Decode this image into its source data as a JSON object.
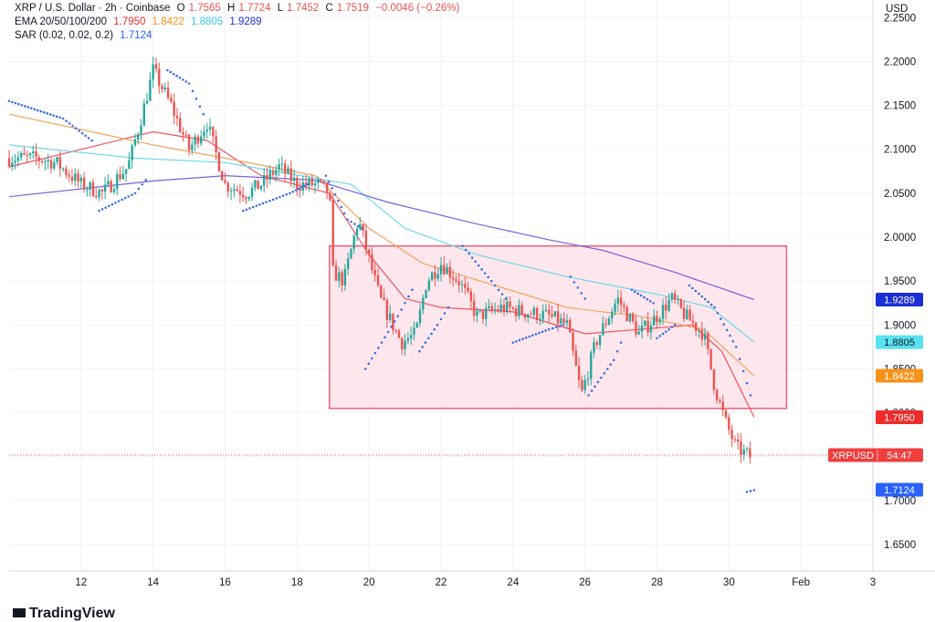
{
  "header": {
    "symbol": "XRP / U.S. Dollar · 2h · Coinbase",
    "ohlc": [
      {
        "k": "O",
        "v": "1.7565"
      },
      {
        "k": "H",
        "v": "1.7724"
      },
      {
        "k": "L",
        "v": "1.7452"
      },
      {
        "k": "C",
        "v": "1.7519"
      }
    ],
    "change": "−0.0046 (−0.26%)",
    "ema_label": "EMA 20/50/100/200",
    "ema_values": [
      "1.7950",
      "1.8422",
      "1.8805",
      "1.9289"
    ],
    "sar_label": "SAR (0.02, 0.02, 0.2)",
    "sar_value": "1.7124"
  },
  "currency": "USD",
  "logo_text": "TradingView",
  "colors": {
    "up": "#26a69a",
    "down": "#ef5350",
    "ema20": "#f0525f",
    "ema50": "#f5a35b",
    "ema100": "#6fd8e6",
    "ema200": "#7b61d9",
    "sar": "#3d6fe0",
    "box_fill": "#fde3ea",
    "box_stroke": "#e8607a",
    "price_line": "#ef5350"
  },
  "chart_data": {
    "type": "candlestick",
    "x_ticks": [
      "12",
      "14",
      "16",
      "18",
      "20",
      "22",
      "24",
      "26",
      "28",
      "30",
      "Feb",
      "3"
    ],
    "y_ticks": [
      "2.2500",
      "2.2000",
      "2.1500",
      "2.1000",
      "2.0500",
      "2.0000",
      "1.9500",
      "1.9000",
      "1.8500",
      "1.8000",
      "1.7500",
      "1.7000",
      "1.6500"
    ],
    "ylim": [
      1.62,
      2.27
    ],
    "x_range_days": [
      10.0,
      34.0
    ],
    "price_badges": [
      {
        "label": "1.9289",
        "value": 1.9289,
        "bg": "#1c2fd4",
        "fg": "#ffffff"
      },
      {
        "label": "1.8805",
        "value": 1.8805,
        "bg": "#58e1ef",
        "fg": "#131722"
      },
      {
        "label": "1.8422",
        "value": 1.8422,
        "bg": "#f7931a",
        "fg": "#ffffff"
      },
      {
        "label": "1.7950",
        "value": 1.795,
        "bg": "#ef2b2b",
        "fg": "#ffffff"
      },
      {
        "label": "1.7124",
        "value": 1.7124,
        "bg": "#2962ff",
        "fg": "#ffffff"
      }
    ],
    "current": {
      "symbol": "XRPUSD",
      "countdown": "54:47",
      "value": 1.7519
    },
    "range_box": {
      "x0": 18.9,
      "x1": 31.6,
      "y0": 1.805,
      "y1": 1.99
    },
    "anchors_close": [
      [
        10.0,
        2.09
      ],
      [
        10.7,
        2.09
      ],
      [
        11.3,
        2.085
      ],
      [
        12.0,
        2.06
      ],
      [
        12.6,
        2.05
      ],
      [
        13.3,
        2.08
      ],
      [
        13.7,
        2.14
      ],
      [
        14.0,
        2.19
      ],
      [
        14.5,
        2.15
      ],
      [
        15.0,
        2.1
      ],
      [
        15.5,
        2.13
      ],
      [
        16.0,
        2.06
      ],
      [
        16.6,
        2.05
      ],
      [
        17.0,
        2.06
      ],
      [
        17.5,
        2.08
      ],
      [
        18.0,
        2.06
      ],
      [
        18.6,
        2.06
      ],
      [
        18.9,
        2.05
      ],
      [
        19.0,
        1.96
      ],
      [
        19.3,
        1.95
      ],
      [
        19.7,
        2.02
      ],
      [
        20.3,
        1.93
      ],
      [
        20.9,
        1.88
      ],
      [
        21.3,
        1.89
      ],
      [
        21.6,
        1.95
      ],
      [
        22.0,
        1.97
      ],
      [
        22.5,
        1.95
      ],
      [
        23.0,
        1.91
      ],
      [
        23.7,
        1.92
      ],
      [
        24.3,
        1.915
      ],
      [
        25.0,
        1.91
      ],
      [
        25.5,
        1.9
      ],
      [
        25.9,
        1.82
      ],
      [
        26.3,
        1.88
      ],
      [
        26.9,
        1.93
      ],
      [
        27.5,
        1.89
      ],
      [
        28.0,
        1.91
      ],
      [
        28.4,
        1.93
      ],
      [
        28.8,
        1.91
      ],
      [
        29.3,
        1.89
      ],
      [
        29.6,
        1.83
      ],
      [
        29.9,
        1.79
      ],
      [
        30.2,
        1.76
      ],
      [
        30.6,
        1.75
      ]
    ],
    "ema_series": [
      {
        "name": "EMA 20",
        "points": [
          [
            10.0,
            2.08
          ],
          [
            14.0,
            2.12
          ],
          [
            15.5,
            2.11
          ],
          [
            17.0,
            2.07
          ],
          [
            18.9,
            2.05
          ],
          [
            20.0,
            1.98
          ],
          [
            21.0,
            1.93
          ],
          [
            22.0,
            1.92
          ],
          [
            24.0,
            1.915
          ],
          [
            26.0,
            1.89
          ],
          [
            27.5,
            1.895
          ],
          [
            29.0,
            1.9
          ],
          [
            29.8,
            1.87
          ],
          [
            30.7,
            1.795
          ]
        ]
      },
      {
        "name": "EMA 50",
        "points": [
          [
            10.0,
            2.14
          ],
          [
            14.0,
            2.105
          ],
          [
            16.0,
            2.09
          ],
          [
            18.5,
            2.07
          ],
          [
            20.0,
            2.01
          ],
          [
            21.5,
            1.97
          ],
          [
            23.5,
            1.945
          ],
          [
            25.5,
            1.92
          ],
          [
            27.5,
            1.91
          ],
          [
            29.3,
            1.895
          ],
          [
            30.7,
            1.842
          ]
        ]
      },
      {
        "name": "EMA 100",
        "points": [
          [
            10.0,
            2.105
          ],
          [
            13.5,
            2.09
          ],
          [
            16.0,
            2.085
          ],
          [
            19.5,
            2.06
          ],
          [
            21.0,
            2.01
          ],
          [
            23.0,
            1.98
          ],
          [
            25.5,
            1.955
          ],
          [
            28.0,
            1.935
          ],
          [
            29.5,
            1.92
          ],
          [
            30.7,
            1.8805
          ]
        ]
      },
      {
        "name": "EMA 200",
        "points": [
          [
            10.0,
            2.046
          ],
          [
            14.0,
            2.064
          ],
          [
            16.0,
            2.07
          ],
          [
            18.5,
            2.065
          ],
          [
            20.5,
            2.04
          ],
          [
            23.0,
            2.015
          ],
          [
            25.0,
            1.997
          ],
          [
            26.5,
            1.985
          ],
          [
            28.5,
            1.96
          ],
          [
            30.7,
            1.9289
          ]
        ]
      }
    ],
    "sar_segments": [
      [
        [
          10.0,
          2.155
        ],
        [
          11.5,
          2.135
        ],
        [
          12.3,
          2.11
        ]
      ],
      [
        [
          12.5,
          2.03
        ],
        [
          13.5,
          2.05
        ],
        [
          13.8,
          2.065
        ]
      ],
      [
        [
          14.4,
          2.19
        ],
        [
          15.0,
          2.175
        ],
        [
          15.4,
          2.14
        ]
      ],
      [
        [
          16.5,
          2.03
        ],
        [
          17.8,
          2.05
        ],
        [
          18.3,
          2.06
        ]
      ],
      [
        [
          18.8,
          2.07
        ],
        [
          19.4,
          2.02
        ],
        [
          19.8,
          2.01
        ]
      ],
      [
        [
          19.9,
          1.85
        ],
        [
          20.8,
          1.91
        ],
        [
          21.2,
          1.94
        ]
      ],
      [
        [
          21.4,
          1.87
        ],
        [
          21.9,
          1.9
        ],
        [
          22.2,
          1.92
        ]
      ],
      [
        [
          22.6,
          1.99
        ],
        [
          23.4,
          1.95
        ],
        [
          23.8,
          1.93
        ]
      ],
      [
        [
          24.0,
          1.88
        ],
        [
          25.0,
          1.895
        ],
        [
          25.4,
          1.9
        ]
      ],
      [
        [
          25.6,
          1.955
        ],
        [
          26.0,
          1.93
        ]
      ],
      [
        [
          26.1,
          1.82
        ],
        [
          26.8,
          1.86
        ],
        [
          27.0,
          1.88
        ]
      ],
      [
        [
          27.3,
          1.94
        ],
        [
          27.9,
          1.925
        ]
      ],
      [
        [
          28.0,
          1.885
        ],
        [
          28.5,
          1.9
        ]
      ],
      [
        [
          28.9,
          1.945
        ],
        [
          29.6,
          1.92
        ],
        [
          30.2,
          1.875
        ],
        [
          30.6,
          1.82
        ]
      ],
      [
        [
          30.5,
          1.71
        ],
        [
          30.7,
          1.712
        ]
      ]
    ]
  }
}
